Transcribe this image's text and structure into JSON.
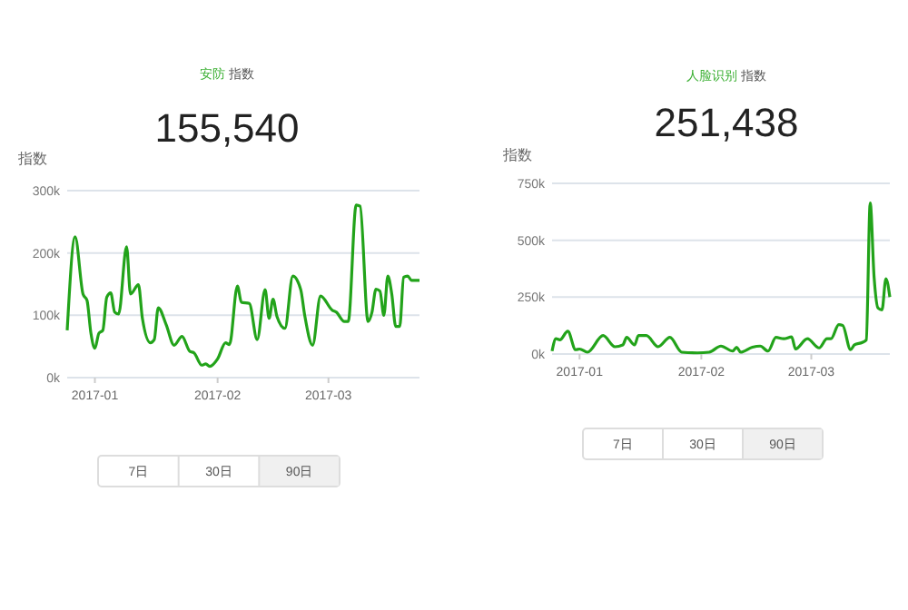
{
  "chart_data": [
    {
      "type": "line",
      "title": "安防 指数",
      "subtitle": "155,540",
      "ylabel": "指数",
      "annotations": [
        "7日",
        "30日",
        "90日"
      ],
      "x": [
        "2016-12-25",
        "2016-12-27",
        "2016-12-29",
        "2016-12-30",
        "2016-12-31",
        "2017-01-01",
        "2017-01-02",
        "2017-01-03",
        "2017-01-04",
        "2017-01-05",
        "2017-01-06",
        "2017-01-07",
        "2017-01-09",
        "2017-01-10",
        "2017-01-12",
        "2017-01-13",
        "2017-01-15",
        "2017-01-16",
        "2017-01-17",
        "2017-01-19",
        "2017-01-21",
        "2017-01-23",
        "2017-01-25",
        "2017-01-26",
        "2017-01-28",
        "2017-01-29",
        "2017-01-30",
        "2017-02-01",
        "2017-02-03",
        "2017-02-04",
        "2017-02-06",
        "2017-02-07",
        "2017-02-09",
        "2017-02-11",
        "2017-02-13",
        "2017-02-14",
        "2017-02-15",
        "2017-02-16",
        "2017-02-18",
        "2017-02-20",
        "2017-02-22",
        "2017-02-23",
        "2017-02-25",
        "2017-02-27",
        "2017-03-02",
        "2017-03-03",
        "2017-03-05",
        "2017-03-06",
        "2017-03-08",
        "2017-03-09",
        "2017-03-11",
        "2017-03-12",
        "2017-03-13",
        "2017-03-14",
        "2017-03-15",
        "2017-03-16",
        "2017-03-17",
        "2017-03-18",
        "2017-03-19",
        "2017-03-20",
        "2017-03-21",
        "2017-03-22",
        "2017-03-24"
      ],
      "series": [
        {
          "color": "#22a31a",
          "values": [
            76000,
            226000,
            134000,
            124000,
            71000,
            47000,
            71000,
            76000,
            129000,
            136000,
            105000,
            102000,
            210000,
            134000,
            149000,
            95000,
            56000,
            61000,
            112000,
            85000,
            52000,
            66000,
            42000,
            40000,
            20000,
            22000,
            18000,
            30000,
            56000,
            53000,
            147000,
            121000,
            119000,
            61000,
            141000,
            95000,
            126000,
            98000,
            79000,
            163000,
            141000,
            100000,
            52000,
            131000,
            108000,
            105000,
            90000,
            90000,
            277000,
            275000,
            90000,
            105000,
            142000,
            139000,
            100000,
            163000,
            134000,
            82000,
            82000,
            161000,
            163000,
            156000,
            156000
          ]
        }
      ],
      "xlim": [
        "2016-12-25",
        "2017-03-24"
      ],
      "xticks": [
        {
          "value": "2017-01-01",
          "label": "2017-01"
        },
        {
          "value": "2017-02-01",
          "label": "2017-02"
        },
        {
          "value": "2017-03-01",
          "label": "2017-03"
        }
      ],
      "ylim": [
        0,
        300000
      ],
      "yticks": [
        {
          "value": 0,
          "label": "0k"
        },
        {
          "value": 100000,
          "label": "100k"
        },
        {
          "value": 200000,
          "label": "200k"
        },
        {
          "value": 300000,
          "label": "300k"
        }
      ],
      "grid": "y",
      "marker": "none",
      "line_style": "solid"
    },
    {
      "type": "line",
      "title": "人脸识别 指数",
      "subtitle": "251,438",
      "ylabel": "指数",
      "annotations": [
        "7日",
        "30日",
        "90日"
      ],
      "x": [
        "2016-12-25",
        "2016-12-26",
        "2016-12-27",
        "2016-12-29",
        "2016-12-31",
        "2017-01-01",
        "2017-01-03",
        "2017-01-07",
        "2017-01-10",
        "2017-01-12",
        "2017-01-13",
        "2017-01-15",
        "2017-01-16",
        "2017-01-18",
        "2017-01-21",
        "2017-01-24",
        "2017-01-27",
        "2017-01-31",
        "2017-02-03",
        "2017-02-06",
        "2017-02-09",
        "2017-02-10",
        "2017-02-11",
        "2017-02-14",
        "2017-02-16",
        "2017-02-18",
        "2017-02-20",
        "2017-02-22",
        "2017-02-24",
        "2017-02-25",
        "2017-02-28",
        "2017-03-03",
        "2017-03-05",
        "2017-03-06",
        "2017-03-08",
        "2017-03-09",
        "2017-03-11",
        "2017-03-12",
        "2017-03-14",
        "2017-03-15",
        "2017-03-16",
        "2017-03-17",
        "2017-03-18",
        "2017-03-19",
        "2017-03-20",
        "2017-03-21"
      ],
      "series": [
        {
          "color": "#22a31a",
          "values": [
            13000,
            67000,
            62000,
            100000,
            19000,
            22000,
            8000,
            81000,
            32000,
            40000,
            73000,
            40000,
            81000,
            81000,
            32000,
            73000,
            8000,
            5000,
            8000,
            35000,
            13000,
            30000,
            8000,
            30000,
            35000,
            13000,
            73000,
            67000,
            75000,
            22000,
            67000,
            27000,
            67000,
            67000,
            129000,
            126000,
            19000,
            40000,
            51000,
            62000,
            664000,
            336000,
            202000,
            194000,
            331000,
            250000
          ]
        }
      ],
      "xlim": [
        "2016-12-25",
        "2017-03-21"
      ],
      "xticks": [
        {
          "value": "2017-01-01",
          "label": "2017-01"
        },
        {
          "value": "2017-02-01",
          "label": "2017-02"
        },
        {
          "value": "2017-03-01",
          "label": "2017-03"
        }
      ],
      "ylim": [
        0,
        750000
      ],
      "yticks": [
        {
          "value": 0,
          "label": "0k"
        },
        {
          "value": 250000,
          "label": "250k"
        },
        {
          "value": 500000,
          "label": "500k"
        },
        {
          "value": 750000,
          "label": "750k"
        }
      ],
      "grid": "y",
      "marker": "none",
      "line_style": "solid"
    }
  ]
}
